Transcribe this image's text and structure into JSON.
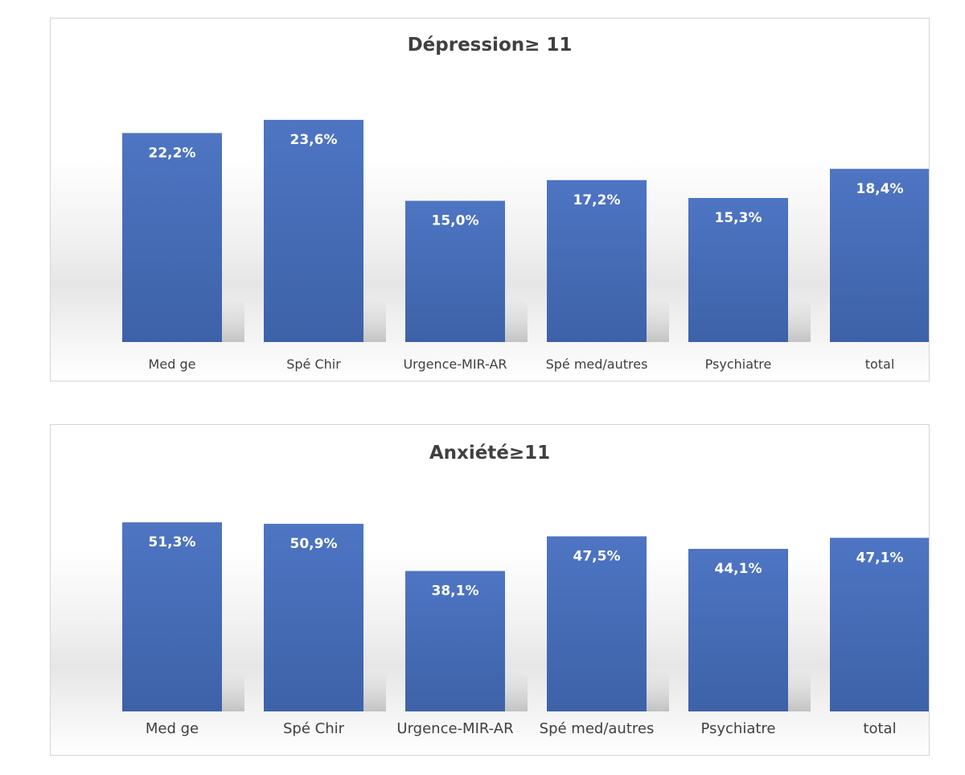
{
  "chart_data": [
    {
      "type": "bar",
      "title": "Dépression≥ 11",
      "categories": [
        "Med ge",
        "Spé Chir",
        "Urgence-MIR-AR",
        "Spé med/autres",
        "Psychiatre",
        "total"
      ],
      "values": [
        22.2,
        23.6,
        15.0,
        17.2,
        15.3,
        18.4
      ],
      "data_labels": [
        "22,2%",
        "23,6%",
        "15,0%",
        "17,2%",
        "15,3%",
        "18,4%"
      ],
      "ylim": [
        0,
        26.5
      ],
      "grid": false,
      "bar_color": "#4a70bd"
    },
    {
      "type": "bar",
      "title": "Anxiété≥11",
      "categories": [
        "Med ge",
        "Spé Chir",
        "Urgence-MIR-AR",
        "Spé med/autres",
        "Psychiatre",
        "total"
      ],
      "values": [
        51.3,
        50.9,
        38.1,
        47.5,
        44.1,
        47.1
      ],
      "data_labels": [
        "51,3%",
        "50,9%",
        "38,1%",
        "47,5%",
        "44,1%",
        "47,1%"
      ],
      "ylim": [
        0,
        52.4
      ],
      "grid": false,
      "bar_color": "#4a70bd"
    }
  ]
}
